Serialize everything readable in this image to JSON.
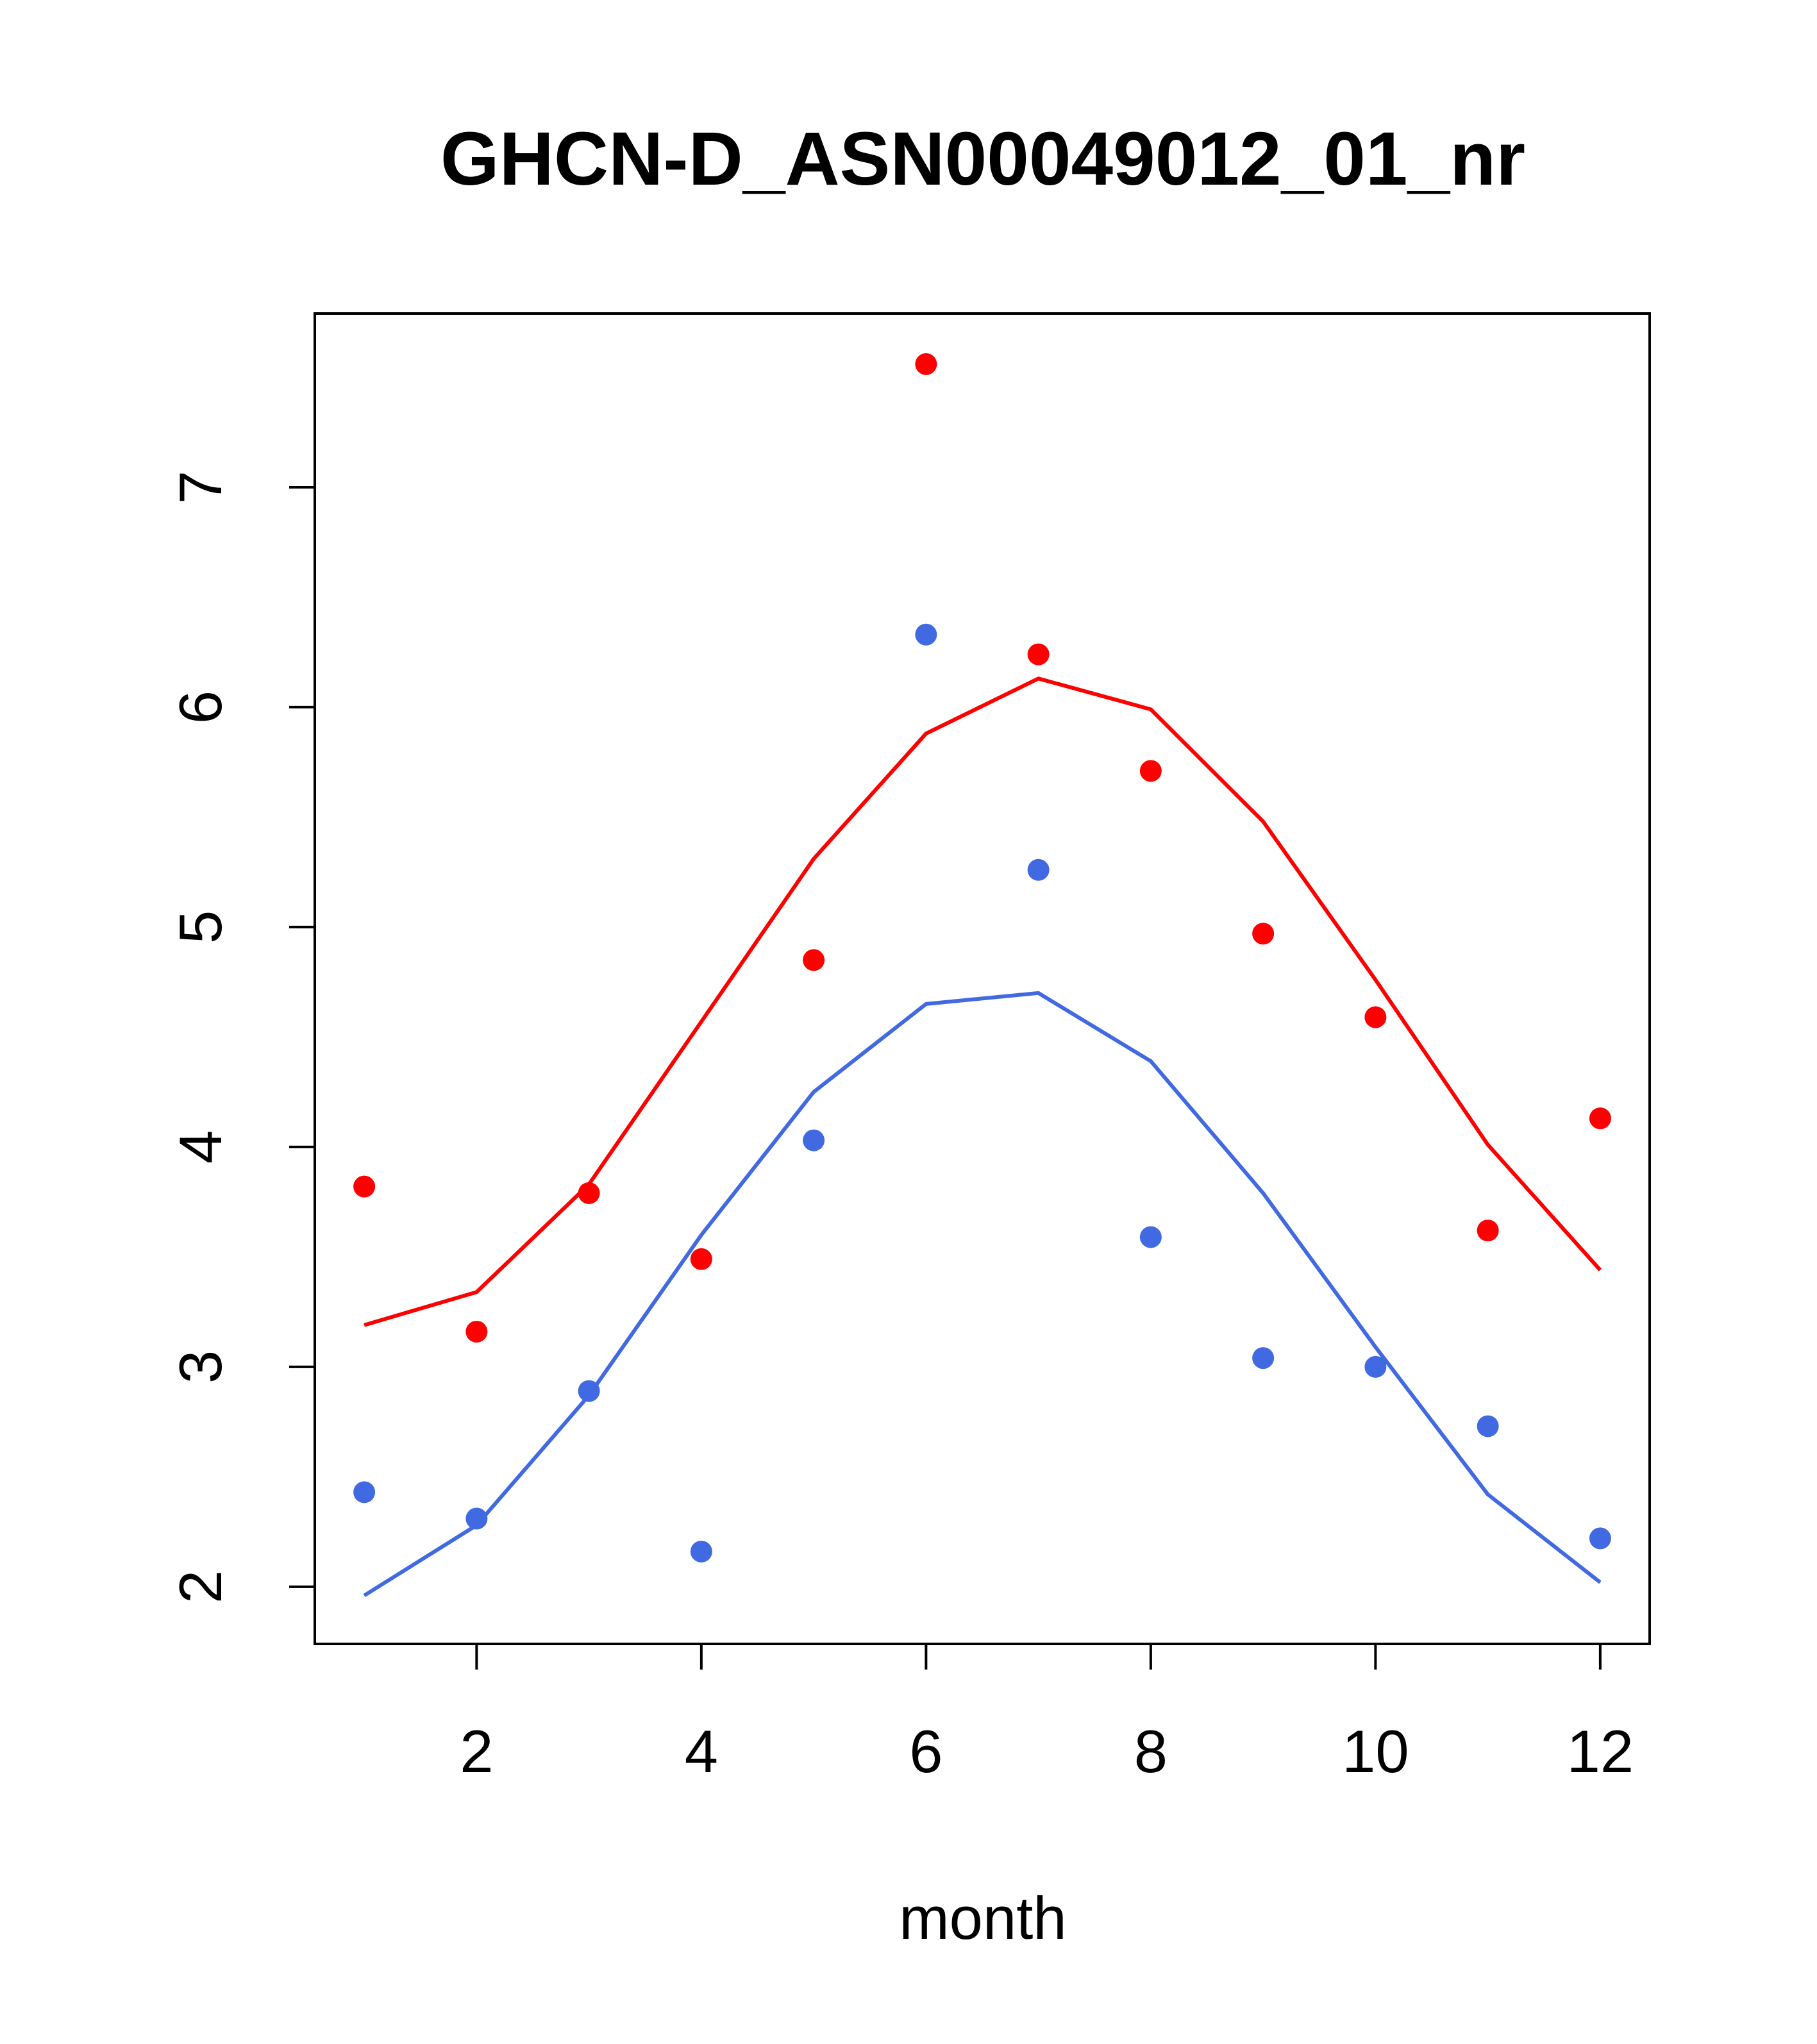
{
  "chart_data": {
    "type": "scatter",
    "title": "GHCN-D_ASN00049012_01_nr",
    "xlabel": "month",
    "ylabel": "",
    "xlim": [
      0.56,
      12.44
    ],
    "ylim": [
      1.74,
      7.79
    ],
    "x_ticks": [
      2,
      4,
      6,
      8,
      10,
      12
    ],
    "x_tick_labels": [
      "2",
      "4",
      "6",
      "8",
      "10",
      "12"
    ],
    "y_ticks": [
      2,
      3,
      4,
      5,
      6,
      7
    ],
    "y_tick_labels": [
      "2",
      "3",
      "4",
      "5",
      "6",
      "7"
    ],
    "grid": false,
    "legend": "none",
    "series": [
      {
        "color": "#ff0000",
        "points": {
          "x": [
            1,
            2,
            3,
            4,
            5,
            6,
            7,
            8,
            9,
            10,
            11,
            12
          ],
          "y": [
            3.82,
            3.16,
            3.79,
            3.49,
            4.85,
            7.56,
            6.24,
            5.71,
            4.97,
            4.59,
            3.62,
            4.13
          ]
        },
        "line": {
          "x": [
            1,
            2,
            3,
            4,
            5,
            6,
            7,
            8,
            9,
            10,
            11,
            12
          ],
          "y": [
            3.19,
            3.34,
            3.83,
            4.57,
            5.31,
            5.88,
            6.13,
            5.99,
            5.48,
            4.76,
            4.01,
            3.44
          ]
        }
      },
      {
        "color": "#4169e1",
        "points": {
          "x": [
            1,
            2,
            3,
            4,
            5,
            6,
            7,
            8,
            9,
            10,
            11,
            12
          ],
          "y": [
            2.43,
            2.31,
            2.89,
            2.16,
            4.03,
            6.33,
            5.26,
            3.59,
            3.04,
            3.0,
            2.73,
            2.22
          ]
        },
        "line": {
          "x": [
            1,
            2,
            3,
            4,
            5,
            6,
            7,
            8,
            9,
            10,
            11,
            12
          ],
          "y": [
            1.96,
            2.28,
            2.87,
            3.6,
            4.25,
            4.65,
            4.7,
            4.39,
            3.79,
            3.09,
            2.42,
            2.02
          ]
        }
      }
    ]
  }
}
